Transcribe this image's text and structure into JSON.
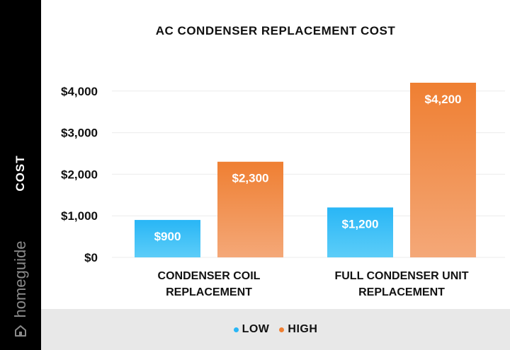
{
  "brand": {
    "name": "homeguide",
    "icon": "house-icon"
  },
  "colors": {
    "low": "#29b6f6",
    "high": "#ef7f32"
  },
  "chart_data": {
    "type": "bar",
    "title": "AC CONDENSER REPLACEMENT COST",
    "ylabel": "COST",
    "xlabel": "",
    "categories": [
      [
        "CONDENSER COIL",
        "REPLACEMENT"
      ],
      [
        "FULL CONDENSER UNIT",
        "REPLACEMENT"
      ]
    ],
    "series": [
      {
        "name": "LOW",
        "values": [
          900,
          1200
        ],
        "labels": [
          "$900",
          "$1,200"
        ]
      },
      {
        "name": "HIGH",
        "values": [
          2300,
          4200
        ],
        "labels": [
          "$2,300",
          "$4,200"
        ]
      }
    ],
    "yticks": [
      0,
      1000,
      2000,
      3000,
      4000
    ],
    "ytick_labels": [
      "$0",
      "$1,000",
      "$2,000",
      "$3,000",
      "$4,000"
    ],
    "ylim": [
      0,
      4200
    ],
    "grid": true,
    "legend_position": "bottom"
  }
}
